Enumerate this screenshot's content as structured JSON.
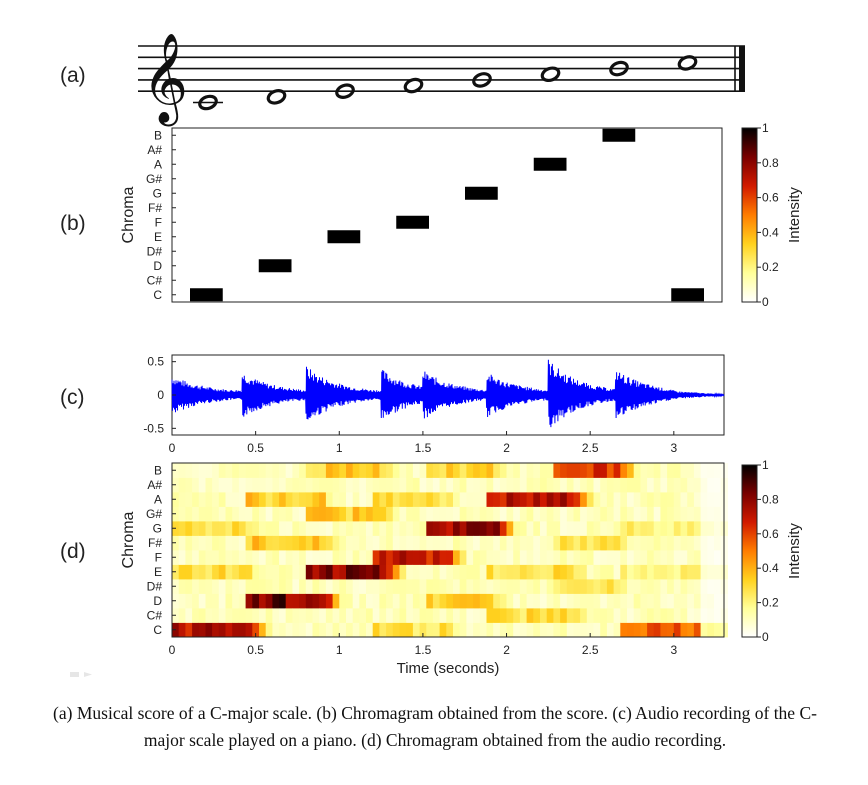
{
  "panels": {
    "a": {
      "label": "(a)"
    },
    "b": {
      "label": "(b)"
    },
    "c": {
      "label": "(c)"
    },
    "d": {
      "label": "(d)"
    }
  },
  "score": {
    "clef": "treble",
    "notes": [
      "C4",
      "D4",
      "E4",
      "F4",
      "G4",
      "A4",
      "B4",
      "C5"
    ],
    "note_staff_steps": [
      -2,
      -1,
      0,
      1,
      2,
      3,
      4,
      5
    ]
  },
  "chroma_labels": [
    "C",
    "C#",
    "D",
    "D#",
    "E",
    "F",
    "F#",
    "G",
    "G#",
    "A",
    "A#",
    "B"
  ],
  "chroma_axis_label": "Chroma",
  "colorbar": {
    "label": "Intensity",
    "ticks": [
      "0",
      "0.2",
      "0.4",
      "0.6",
      "0.8",
      "1"
    ],
    "colors": [
      "#ffffff",
      "#ffff99",
      "#ffd21f",
      "#ff7d00",
      "#d11a00",
      "#7a0000",
      "#000000"
    ]
  },
  "chart_data": [
    {
      "type": "heatmap",
      "title": "Chromagram obtained from the score",
      "ylabel": "Chroma",
      "segments": [
        {
          "pitch": "C",
          "start": 0,
          "end": 1
        },
        {
          "pitch": "D",
          "start": 1,
          "end": 2
        },
        {
          "pitch": "E",
          "start": 2,
          "end": 3
        },
        {
          "pitch": "F",
          "start": 3,
          "end": 4
        },
        {
          "pitch": "G",
          "start": 4,
          "end": 5
        },
        {
          "pitch": "A",
          "start": 5,
          "end": 6
        },
        {
          "pitch": "B",
          "start": 6,
          "end": 7
        },
        {
          "pitch": "C",
          "start": 7,
          "end": 8
        }
      ],
      "xlim": [
        0,
        8
      ],
      "colorbar_range": [
        0,
        1
      ]
    },
    {
      "type": "line",
      "title": "Audio recording of the C-major scale played on a piano",
      "xlabel": "",
      "xlim": [
        0,
        3.3
      ],
      "ylim": [
        -0.6,
        0.6
      ],
      "yticks": [
        "0.5",
        "0",
        "-0.5"
      ],
      "xticks": [
        "0",
        "0.5",
        "1",
        "1.5",
        "2",
        "2.5",
        "3"
      ],
      "onsets": [
        0.0,
        0.42,
        0.8,
        1.25,
        1.5,
        1.88,
        2.25,
        2.65
      ],
      "peaks": [
        0.2,
        0.25,
        0.35,
        0.3,
        0.28,
        0.25,
        0.45,
        0.3
      ],
      "end_time": 3.3
    },
    {
      "type": "heatmap",
      "title": "Chromagram obtained from the audio recording",
      "xlabel": "Time (seconds)",
      "ylabel": "Chroma",
      "xlim": [
        0,
        3.3
      ],
      "xticks": [
        "0",
        "0.5",
        "1",
        "1.5",
        "2",
        "2.5",
        "3"
      ],
      "colorbar_range": [
        0,
        1
      ],
      "notes": [
        {
          "pitch": "C",
          "start": 0.0,
          "end": 0.45,
          "intensity": 0.82
        },
        {
          "pitch": "D",
          "start": 0.42,
          "end": 0.88,
          "intensity": 0.95
        },
        {
          "pitch": "E",
          "start": 0.8,
          "end": 1.25,
          "intensity": 0.92
        },
        {
          "pitch": "F",
          "start": 1.18,
          "end": 1.62,
          "intensity": 0.78
        },
        {
          "pitch": "G",
          "start": 1.5,
          "end": 1.92,
          "intensity": 0.88
        },
        {
          "pitch": "A",
          "start": 1.88,
          "end": 2.38,
          "intensity": 0.8
        },
        {
          "pitch": "B",
          "start": 2.25,
          "end": 2.65,
          "intensity": 0.72
        },
        {
          "pitch": "C",
          "start": 2.65,
          "end": 3.3,
          "intensity": 0.62
        }
      ]
    }
  ],
  "caption": "(a) Musical score of a C-major scale. (b) Chromagram obtained from the score. (c) Audio recording of the C-major scale played on a piano. (d) Chromagram obtained from the audio recording."
}
